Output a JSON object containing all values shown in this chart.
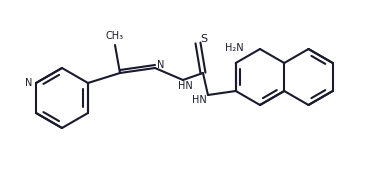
{
  "bg_color": "#ffffff",
  "line_color": "#1a1a2e",
  "text_color": "#1a1a2e",
  "bond_lw": 1.5,
  "figsize": [
    3.87,
    1.8
  ],
  "dpi": 100,
  "fs": 7.0,
  "xlim": [
    0,
    3.87
  ],
  "ylim": [
    0,
    1.8
  ]
}
